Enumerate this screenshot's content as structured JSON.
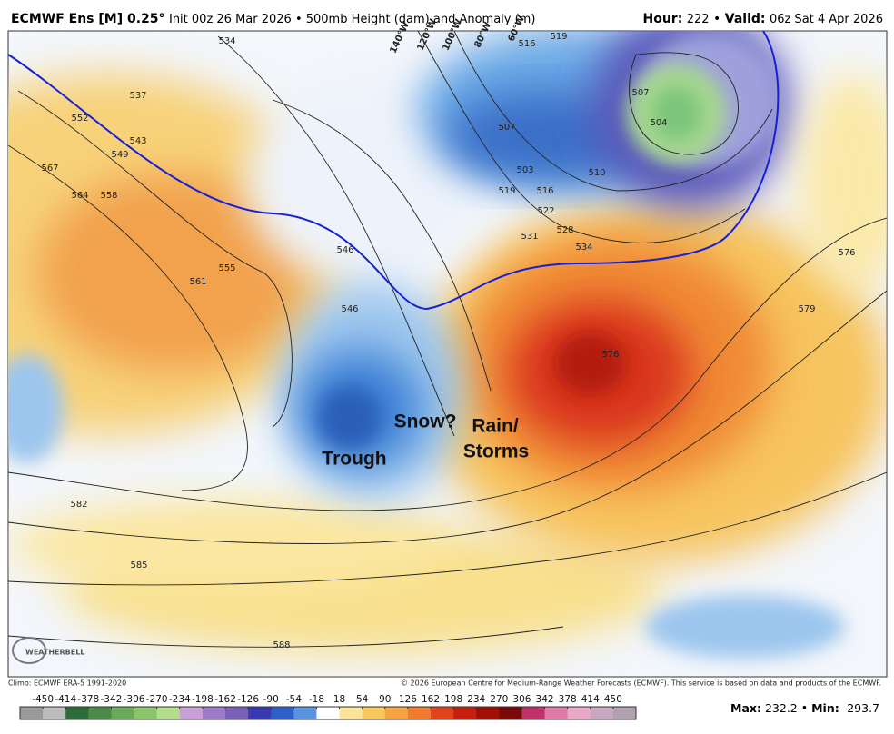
{
  "header": {
    "model": "ECMWF Ens [M] 0.25°",
    "description": "Init 00z 26 Mar 2026 • 500mb Height (dam) and Anomaly (m)",
    "hour_label": "Hour:",
    "hour": "222",
    "valid_label": "Valid:",
    "valid": "06z Sat 4 Apr 2026"
  },
  "map": {
    "annotations": [
      "Snow?",
      "Rain/",
      "Storms",
      "Trough"
    ],
    "longitude_labels": [
      "140°W",
      "120°W",
      "100°W",
      "80°W",
      "60°W"
    ],
    "contour_labels": [
      "534",
      "537",
      "552",
      "543",
      "549",
      "567",
      "564",
      "558",
      "555",
      "561",
      "546",
      "546",
      "519",
      "516",
      "507",
      "504",
      "510",
      "528",
      "531",
      "534",
      "576",
      "579",
      "576",
      "582",
      "585",
      "588",
      "516",
      "522",
      "519",
      "503",
      "507"
    ],
    "logo": "WEATHERBELL"
  },
  "footer": {
    "climo": "Climo: ECMWF ERA-5 1991-2020",
    "copyright": "© 2026 European Centre for Medium-Range Weather Forecasts (ECMWF). This service is based on data and products of the ECMWF."
  },
  "colorbar": {
    "ticks": [
      -450,
      -414,
      -378,
      -342,
      -306,
      -270,
      -234,
      -198,
      -162,
      -126,
      -90,
      -54,
      -18,
      18,
      54,
      90,
      126,
      162,
      198,
      234,
      270,
      306,
      342,
      378,
      414,
      450
    ]
  },
  "stats": {
    "max_label": "Max:",
    "max": "232.2",
    "min_label": "Min:",
    "min": "-293.7"
  }
}
